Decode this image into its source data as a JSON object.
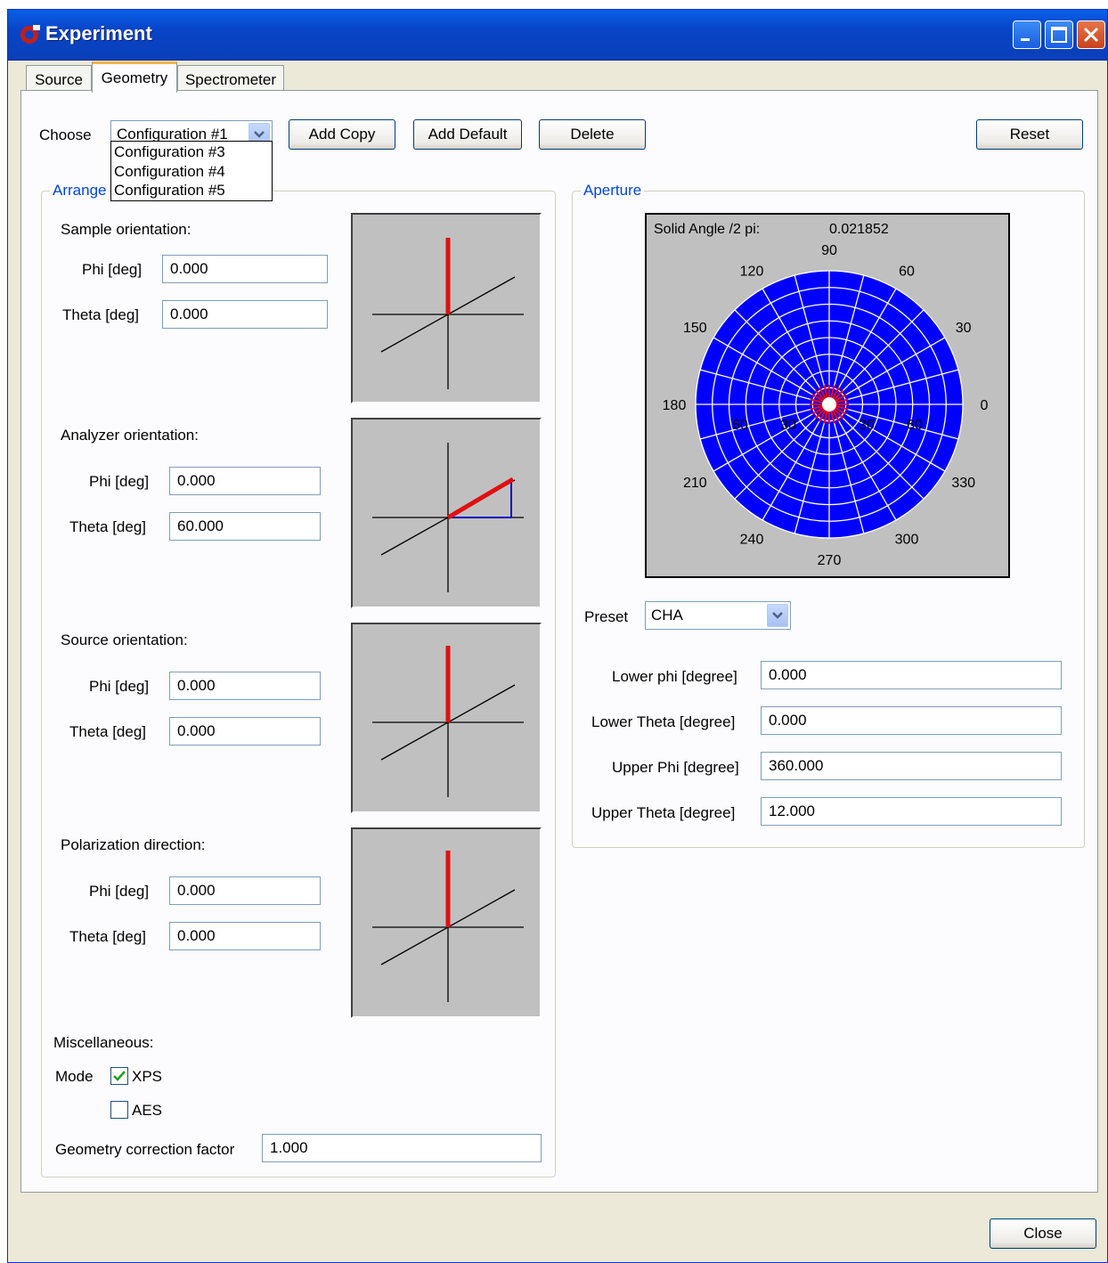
{
  "window": {
    "title": "Experiment"
  },
  "tabs": [
    {
      "label": "Source",
      "active": false
    },
    {
      "label": "Geometry",
      "active": true
    },
    {
      "label": "Spectrometer",
      "active": false
    }
  ],
  "toolbar": {
    "choose_label": "Choose",
    "config_selected": "Configuration #1",
    "dropdown_options": [
      "Configuration #3",
      "Configuration #4",
      "Configuration #5"
    ],
    "add_copy": "Add Copy",
    "add_default": "Add Default",
    "delete": "Delete",
    "reset": "Reset"
  },
  "arrangement": {
    "title": "Arrange",
    "sample": {
      "heading": "Sample orientation:",
      "phi_label": "Phi [deg]",
      "phi": "0.000",
      "theta_label": "Theta [deg]",
      "theta": "0.000"
    },
    "analyzer": {
      "heading": "Analyzer orientation:",
      "phi_label": "Phi [deg]",
      "phi": "0.000",
      "theta_label": "Theta [deg]",
      "theta": "60.000"
    },
    "source": {
      "heading": "Source orientation:",
      "phi_label": "Phi [deg]",
      "phi": "0.000",
      "theta_label": "Theta [deg]",
      "theta": "0.000"
    },
    "polarization": {
      "heading": "Polarization direction:",
      "phi_label": "Phi [deg]",
      "phi": "0.000",
      "theta_label": "Theta [deg]",
      "theta": "0.000"
    },
    "misc": {
      "heading": "Miscellaneous:",
      "mode_label": "Mode",
      "xps_label": "XPS",
      "xps_checked": true,
      "aes_label": "AES",
      "aes_checked": false,
      "gcf_label": "Geometry correction factor",
      "gcf": "1.000"
    }
  },
  "aperture": {
    "title": "Aperture",
    "solid_angle_label": "Solid Angle /2 pi:",
    "solid_angle_value": "0.021852",
    "polar": {
      "angle_labels": [
        "0",
        "30",
        "60",
        "90",
        "120",
        "150",
        "180",
        "210",
        "240",
        "270",
        "300",
        "330"
      ],
      "radial_labels_left": [
        "60",
        "30"
      ],
      "radial_labels_right": [
        "30",
        "60"
      ],
      "fill_color": "#0000ff",
      "grid_color": "#ffffff",
      "highlight_color": "#ff0000"
    },
    "preset_label": "Preset",
    "preset_value": "CHA",
    "lower_phi_label": "Lower phi [degree]",
    "lower_phi": "0.000",
    "lower_theta_label": "Lower Theta [degree]",
    "lower_theta": "0.000",
    "upper_phi_label": "Upper Phi [degree]",
    "upper_phi": "360.000",
    "upper_theta_label": "Upper Theta [degree]",
    "upper_theta": "12.000"
  },
  "footer": {
    "close": "Close"
  }
}
